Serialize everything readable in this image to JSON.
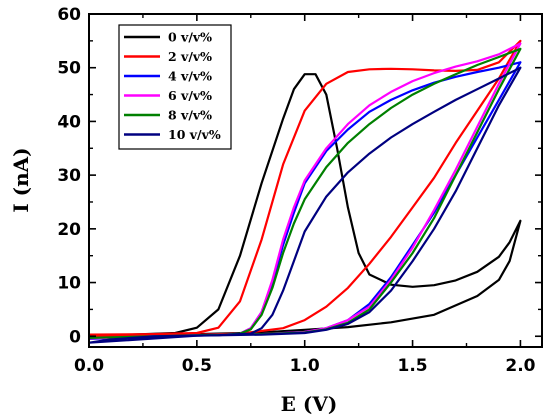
{
  "chart_data": {
    "type": "line",
    "title": "",
    "xlabel": "E (V)",
    "ylabel": "I (nA)",
    "xlim": [
      0.0,
      2.1
    ],
    "ylim": [
      -2,
      60
    ],
    "xticks": [
      "0.0",
      "0.5",
      "1.0",
      "1.5",
      "2.0"
    ],
    "xtick_values": [
      0.0,
      0.5,
      1.0,
      1.5,
      2.0
    ],
    "yticks": [
      "0",
      "10",
      "20",
      "30",
      "40",
      "50",
      "60"
    ],
    "ytick_values": [
      0,
      10,
      20,
      30,
      40,
      50,
      60
    ],
    "grid": false,
    "legend_position": "top-left",
    "series": [
      {
        "name": "0 v/v%",
        "color": "#000000",
        "forward": [
          [
            0.0,
            0.0
          ],
          [
            0.2,
            0.3
          ],
          [
            0.4,
            0.6
          ],
          [
            0.5,
            1.6
          ],
          [
            0.6,
            5.0
          ],
          [
            0.7,
            15.0
          ],
          [
            0.8,
            28.5
          ],
          [
            0.9,
            40.5
          ],
          [
            0.95,
            46.0
          ],
          [
            1.0,
            48.8
          ],
          [
            1.05,
            48.8
          ],
          [
            1.1,
            45.0
          ],
          [
            1.15,
            35.0
          ],
          [
            1.2,
            24.0
          ],
          [
            1.25,
            15.5
          ],
          [
            1.3,
            11.5
          ],
          [
            1.4,
            9.6
          ],
          [
            1.5,
            9.2
          ],
          [
            1.6,
            9.5
          ],
          [
            1.7,
            10.4
          ],
          [
            1.8,
            12.0
          ],
          [
            1.9,
            14.8
          ],
          [
            1.95,
            17.5
          ],
          [
            2.0,
            21.5
          ]
        ],
        "reverse": [
          [
            2.0,
            21.5
          ],
          [
            1.95,
            14.0
          ],
          [
            1.9,
            10.5
          ],
          [
            1.8,
            7.5
          ],
          [
            1.6,
            4.0
          ],
          [
            1.4,
            2.6
          ],
          [
            1.2,
            1.7
          ],
          [
            1.0,
            1.2
          ],
          [
            0.8,
            0.7
          ],
          [
            0.5,
            0.4
          ],
          [
            0.2,
            0.2
          ],
          [
            0.0,
            0.0
          ]
        ]
      },
      {
        "name": "2 v/v%",
        "color": "#ff0000",
        "forward": [
          [
            0.0,
            0.3
          ],
          [
            0.3,
            0.4
          ],
          [
            0.5,
            0.6
          ],
          [
            0.6,
            1.6
          ],
          [
            0.7,
            6.5
          ],
          [
            0.8,
            18.0
          ],
          [
            0.9,
            32.0
          ],
          [
            1.0,
            42.0
          ],
          [
            1.1,
            47.0
          ],
          [
            1.2,
            49.2
          ],
          [
            1.3,
            49.7
          ],
          [
            1.4,
            49.8
          ],
          [
            1.5,
            49.7
          ],
          [
            1.6,
            49.5
          ],
          [
            1.7,
            49.4
          ],
          [
            1.8,
            49.6
          ],
          [
            1.9,
            51.0
          ],
          [
            2.0,
            55.0
          ]
        ],
        "reverse": [
          [
            2.0,
            55.0
          ],
          [
            1.9,
            48.0
          ],
          [
            1.8,
            42.0
          ],
          [
            1.7,
            36.0
          ],
          [
            1.6,
            29.5
          ],
          [
            1.5,
            24.0
          ],
          [
            1.4,
            18.5
          ],
          [
            1.3,
            13.5
          ],
          [
            1.2,
            9.0
          ],
          [
            1.1,
            5.5
          ],
          [
            1.0,
            3.0
          ],
          [
            0.9,
            1.5
          ],
          [
            0.7,
            0.5
          ],
          [
            0.4,
            0.2
          ],
          [
            0.0,
            0.0
          ]
        ]
      },
      {
        "name": "4 v/v%",
        "color": "#0000ff",
        "forward": [
          [
            0.0,
            -0.5
          ],
          [
            0.3,
            0.0
          ],
          [
            0.6,
            0.2
          ],
          [
            0.7,
            0.5
          ],
          [
            0.75,
            1.5
          ],
          [
            0.8,
            4.5
          ],
          [
            0.85,
            10.0
          ],
          [
            0.9,
            17.0
          ],
          [
            0.95,
            23.0
          ],
          [
            1.0,
            28.5
          ],
          [
            1.1,
            34.5
          ],
          [
            1.2,
            38.5
          ],
          [
            1.3,
            41.8
          ],
          [
            1.4,
            44.0
          ],
          [
            1.5,
            45.8
          ],
          [
            1.6,
            47.2
          ],
          [
            1.7,
            48.3
          ],
          [
            1.8,
            49.2
          ],
          [
            1.9,
            50.0
          ],
          [
            2.0,
            51.0
          ]
        ],
        "reverse": [
          [
            2.0,
            51.0
          ],
          [
            1.9,
            44.0
          ],
          [
            1.8,
            37.0
          ],
          [
            1.7,
            30.0
          ],
          [
            1.6,
            23.0
          ],
          [
            1.5,
            17.0
          ],
          [
            1.4,
            11.0
          ],
          [
            1.3,
            6.0
          ],
          [
            1.2,
            3.0
          ],
          [
            1.1,
            1.5
          ],
          [
            1.0,
            0.8
          ],
          [
            0.8,
            0.4
          ],
          [
            0.5,
            0.2
          ],
          [
            0.0,
            -0.5
          ]
        ]
      },
      {
        "name": "6 v/v%",
        "color": "#ff00ff",
        "forward": [
          [
            0.0,
            -0.4
          ],
          [
            0.3,
            0.0
          ],
          [
            0.6,
            0.2
          ],
          [
            0.7,
            0.5
          ],
          [
            0.75,
            1.5
          ],
          [
            0.8,
            4.5
          ],
          [
            0.85,
            10.5
          ],
          [
            0.9,
            18.0
          ],
          [
            0.95,
            24.0
          ],
          [
            1.0,
            29.0
          ],
          [
            1.1,
            35.0
          ],
          [
            1.2,
            39.5
          ],
          [
            1.3,
            43.0
          ],
          [
            1.4,
            45.5
          ],
          [
            1.5,
            47.5
          ],
          [
            1.6,
            49.0
          ],
          [
            1.7,
            50.2
          ],
          [
            1.8,
            51.2
          ],
          [
            1.9,
            52.5
          ],
          [
            2.0,
            54.5
          ]
        ],
        "reverse": [
          [
            2.0,
            54.5
          ],
          [
            1.9,
            47.0
          ],
          [
            1.8,
            39.0
          ],
          [
            1.7,
            31.0
          ],
          [
            1.6,
            23.5
          ],
          [
            1.5,
            16.5
          ],
          [
            1.4,
            10.5
          ],
          [
            1.3,
            5.5
          ],
          [
            1.2,
            3.0
          ],
          [
            1.1,
            1.5
          ],
          [
            1.0,
            0.8
          ],
          [
            0.8,
            0.4
          ],
          [
            0.5,
            0.2
          ],
          [
            0.0,
            -0.4
          ]
        ]
      },
      {
        "name": "8 v/v%",
        "color": "#008000",
        "forward": [
          [
            0.0,
            -0.3
          ],
          [
            0.3,
            0.0
          ],
          [
            0.6,
            0.2
          ],
          [
            0.7,
            0.5
          ],
          [
            0.75,
            1.3
          ],
          [
            0.8,
            4.0
          ],
          [
            0.85,
            9.0
          ],
          [
            0.9,
            15.5
          ],
          [
            0.95,
            21.0
          ],
          [
            1.0,
            25.5
          ],
          [
            1.1,
            31.5
          ],
          [
            1.2,
            36.0
          ],
          [
            1.3,
            39.5
          ],
          [
            1.4,
            42.5
          ],
          [
            1.5,
            45.0
          ],
          [
            1.6,
            47.0
          ],
          [
            1.7,
            48.8
          ],
          [
            1.8,
            50.5
          ],
          [
            1.9,
            52.0
          ],
          [
            2.0,
            53.5
          ]
        ],
        "reverse": [
          [
            2.0,
            53.5
          ],
          [
            1.9,
            46.0
          ],
          [
            1.8,
            38.0
          ],
          [
            1.7,
            30.0
          ],
          [
            1.6,
            22.0
          ],
          [
            1.5,
            15.5
          ],
          [
            1.4,
            10.0
          ],
          [
            1.3,
            5.0
          ],
          [
            1.2,
            2.5
          ],
          [
            1.1,
            1.3
          ],
          [
            1.0,
            0.7
          ],
          [
            0.8,
            0.4
          ],
          [
            0.5,
            0.2
          ],
          [
            0.0,
            -0.3
          ]
        ]
      },
      {
        "name": "10 v/v%",
        "color": "#000080",
        "forward": [
          [
            0.0,
            -1.2
          ],
          [
            0.1,
            -0.6
          ],
          [
            0.3,
            0.0
          ],
          [
            0.6,
            0.2
          ],
          [
            0.75,
            0.5
          ],
          [
            0.8,
            1.5
          ],
          [
            0.85,
            4.0
          ],
          [
            0.9,
            8.5
          ],
          [
            0.95,
            14.0
          ],
          [
            1.0,
            19.5
          ],
          [
            1.1,
            26.0
          ],
          [
            1.2,
            30.5
          ],
          [
            1.3,
            34.0
          ],
          [
            1.4,
            37.0
          ],
          [
            1.5,
            39.5
          ],
          [
            1.6,
            41.8
          ],
          [
            1.7,
            44.0
          ],
          [
            1.8,
            46.0
          ],
          [
            1.9,
            48.0
          ],
          [
            2.0,
            50.0
          ]
        ],
        "reverse": [
          [
            2.0,
            50.0
          ],
          [
            1.9,
            43.0
          ],
          [
            1.8,
            35.0
          ],
          [
            1.7,
            27.0
          ],
          [
            1.6,
            20.0
          ],
          [
            1.5,
            14.0
          ],
          [
            1.4,
            8.5
          ],
          [
            1.3,
            4.5
          ],
          [
            1.2,
            2.3
          ],
          [
            1.1,
            1.2
          ],
          [
            1.0,
            0.6
          ],
          [
            0.8,
            0.3
          ],
          [
            0.5,
            0.1
          ],
          [
            0.0,
            -1.2
          ]
        ]
      }
    ]
  }
}
